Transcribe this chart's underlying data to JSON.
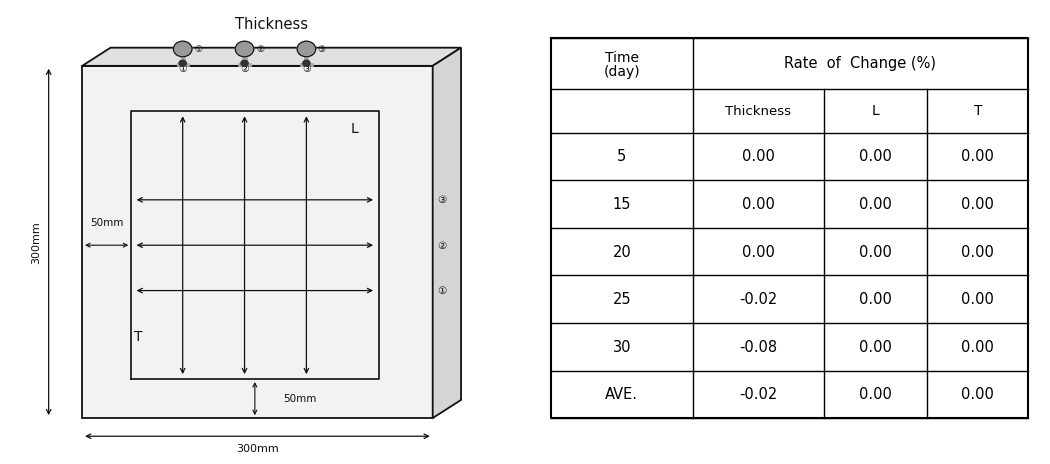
{
  "table_rows": [
    [
      "5",
      "0.00",
      "0.00",
      "0.00"
    ],
    [
      "15",
      "0.00",
      "0.00",
      "0.00"
    ],
    [
      "20",
      "0.00",
      "0.00",
      "0.00"
    ],
    [
      "25",
      "-0.02",
      "0.00",
      "0.00"
    ],
    [
      "30",
      "-0.08",
      "0.00",
      "0.00"
    ],
    [
      "AVE.",
      "-0.02",
      "0.00",
      "0.00"
    ]
  ],
  "diagram_title": "Thickness",
  "dim_300mm_side": "300mm",
  "dim_300mm_bottom": "300mm",
  "dim_50mm_left": "50mm",
  "dim_50mm_bottom": "50mm",
  "label_L": "L",
  "label_T": "T",
  "bg_color": "#ffffff",
  "line_color": "#111111",
  "circ_nums": [
    "①",
    "②",
    "③"
  ]
}
